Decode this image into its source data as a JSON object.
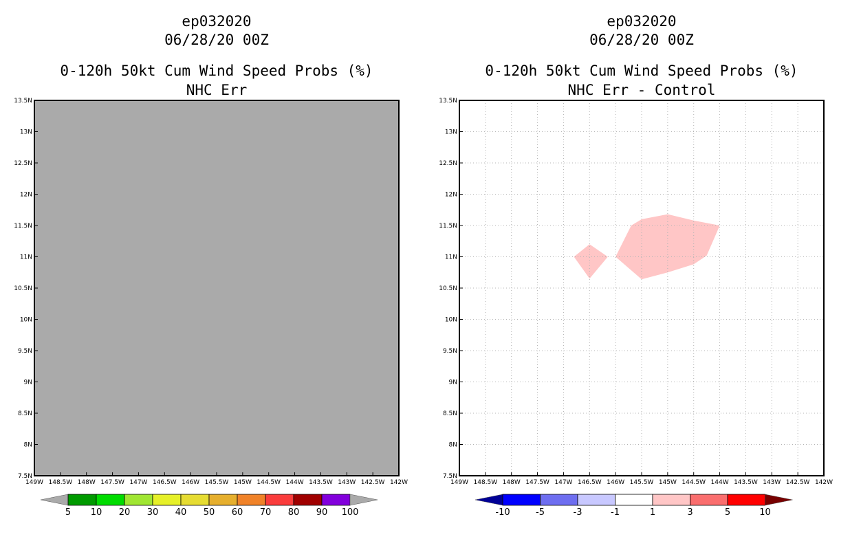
{
  "left_panel": {
    "storm_id": "ep032020",
    "date": "06/28/20 00Z",
    "title": "0-120h 50kt Cum Wind Speed Probs (%)",
    "subtitle": "NHC Err",
    "fill_color": "#aaaaaa"
  },
  "right_panel": {
    "storm_id": "ep032020",
    "date": "06/28/20 00Z",
    "title": "0-120h 50kt Cum Wind Speed Probs (%)",
    "subtitle": "NHC Err - Control",
    "features": [
      {
        "name": "small-region",
        "color": "#ffc6c6",
        "points": [
          [
            -146.8,
            11.0
          ],
          [
            -146.5,
            11.2
          ],
          [
            -146.15,
            11.0
          ],
          [
            -146.5,
            10.65
          ]
        ]
      },
      {
        "name": "large-region",
        "color": "#ffc6c6",
        "points": [
          [
            -146.0,
            11.0
          ],
          [
            -145.7,
            11.5
          ],
          [
            -145.5,
            11.6
          ],
          [
            -145.0,
            11.68
          ],
          [
            -144.5,
            11.58
          ],
          [
            -144.0,
            11.5
          ],
          [
            -144.25,
            11.02
          ],
          [
            -144.5,
            10.88
          ],
          [
            -145.0,
            10.75
          ],
          [
            -145.5,
            10.64
          ]
        ]
      }
    ]
  },
  "map_axes": {
    "lon_range": [
      -149,
      -142
    ],
    "lat_range": [
      7.5,
      13.5
    ],
    "lon_ticks": [
      "149W",
      "148.5W",
      "148W",
      "147.5W",
      "147W",
      "146.5W",
      "146W",
      "145.5W",
      "145W",
      "144.5W",
      "144W",
      "143.5W",
      "143W",
      "142.5W",
      "142W"
    ],
    "lat_ticks": [
      "7.5N",
      "8N",
      "8.5N",
      "9N",
      "9.5N",
      "10N",
      "10.5N",
      "11N",
      "11.5N",
      "12N",
      "12.5N",
      "13N",
      "13.5N"
    ]
  },
  "legend_left": {
    "labels": [
      "5",
      "10",
      "20",
      "30",
      "40",
      "50",
      "60",
      "70",
      "80",
      "90",
      "100"
    ],
    "colors": [
      "#009a00",
      "#00dc00",
      "#a0e632",
      "#e6f028",
      "#e6dc32",
      "#e6af2d",
      "#f08228",
      "#fa3c3c",
      "#a00000",
      "#8200dc"
    ],
    "under_color": "#aaaaaa",
    "over_color": "#aaaaaa"
  },
  "legend_right": {
    "labels": [
      "-10",
      "-5",
      "-3",
      "-1",
      "1",
      "3",
      "5",
      "10"
    ],
    "colors": [
      "#0000ff",
      "#6e6ef0",
      "#c8c8ff",
      "#ffffff",
      "#ffc6c6",
      "#fa6e6e",
      "#ff0000"
    ],
    "under_color": "#000096",
    "over_color": "#780000"
  }
}
